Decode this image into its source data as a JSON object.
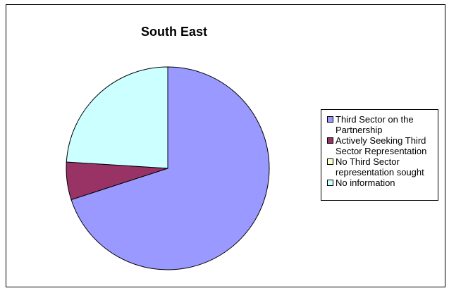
{
  "chart_data": {
    "type": "pie",
    "title": "South East",
    "categories": [
      "Third Sector on the Partnership",
      "Actively Seeking Third Sector Representation",
      "No Third Sector representation sought",
      "No information"
    ],
    "values": [
      70,
      6,
      0,
      24
    ],
    "colors": [
      "#9999FF",
      "#993366",
      "#FFFFCC",
      "#CCFFFF"
    ],
    "legend_position": "right",
    "start_angle_deg": 0,
    "direction": "clockwise"
  },
  "legend": {
    "items": [
      {
        "label": "Third Sector on the Partnership",
        "color": "#9999FF"
      },
      {
        "label": "Actively Seeking Third Sector Representation",
        "color": "#993366"
      },
      {
        "label": "No Third Sector representation sought",
        "color": "#FFFFCC"
      },
      {
        "label": "No information",
        "color": "#CCFFFF"
      }
    ]
  }
}
